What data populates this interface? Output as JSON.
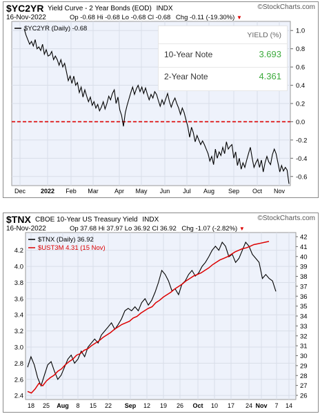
{
  "brand": "StockCharts.com",
  "chart1": {
    "symbol": "$YC2YR",
    "name": "Yield Curve - 2 Year Bonds (EOD)",
    "exchange": "INDX",
    "date": "16-Nov-2022",
    "ohlc": "Op -0.68  Hi -0.68  Lo -0.68  Cl -0.68",
    "chg": "Chg -0.11 (-19.30%)",
    "chg_arrow": "▼",
    "legend": "$YC2YR (Daily) -0.68",
    "yield_table": {
      "header": "YIELD (%)",
      "rows": [
        {
          "label": "10-Year Note",
          "value": "3.693"
        },
        {
          "label": "2-Year Note",
          "value": "4.361"
        }
      ],
      "value_color": "#3caa3c"
    }
  },
  "chart2": {
    "symbol": "$TNX",
    "name": "CBOE 10-Year US Treasury Yield",
    "exchange": "INDX",
    "date": "16-Nov-2022",
    "ohlc": "Op 37.68  Hi 37.97  Lo 36.92  Cl 36.92",
    "chg": "Chg -1.07 (-2.82%)",
    "chg_arrow": "▼",
    "legend1": "$TNX (Daily) 36.92",
    "legend2": "$UST3M 4.31 (15 Nov)"
  },
  "colors": {
    "line": "#000000",
    "red": "#dd0000",
    "grid": "#d8dde8",
    "plot_bg": "#eef2fb"
  },
  "chart_data": [
    {
      "type": "line",
      "title": "$YC2YR Yield Curve - 2 Year Bonds (EOD)",
      "ylim": [
        -0.7,
        1.1
      ],
      "y_ticks": [
        1.0,
        0.8,
        0.6,
        0.4,
        0.2,
        0.0,
        -0.2,
        -0.4,
        -0.6
      ],
      "x_labels": [
        "Dec",
        "2022",
        "Feb",
        "Mar",
        "Apr",
        "May",
        "Jun",
        "Jul",
        "Aug",
        "Sep",
        "Oct",
        "Nov"
      ],
      "reference_line": 0.0,
      "series": [
        {
          "name": "$YC2YR (Daily) -0.68",
          "color": "#000000",
          "values": [
            1.02,
            0.95,
            0.9,
            0.85,
            0.88,
            0.83,
            0.9,
            0.8,
            0.82,
            0.78,
            0.85,
            0.74,
            0.79,
            0.72,
            0.73,
            0.77,
            0.68,
            0.72,
            0.68,
            0.62,
            0.68,
            0.6,
            0.64,
            0.55,
            0.45,
            0.5,
            0.42,
            0.5,
            0.4,
            0.43,
            0.32,
            0.38,
            0.27,
            0.35,
            0.28,
            0.22,
            0.27,
            0.18,
            0.22,
            0.15,
            0.19,
            0.12,
            0.16,
            0.22,
            0.14,
            0.2,
            0.28,
            0.24,
            0.31,
            0.35,
            0.2,
            0.27,
            0.13,
            0.07,
            -0.05,
            0.1,
            0.18,
            0.25,
            0.32,
            0.38,
            0.3,
            0.36,
            0.4,
            0.33,
            0.38,
            0.31,
            0.37,
            0.3,
            0.24,
            0.3,
            0.26,
            0.33,
            0.3,
            0.23,
            0.17,
            0.24,
            0.19,
            0.25,
            0.31,
            0.22,
            0.16,
            0.22,
            0.26,
            0.2,
            0.15,
            0.08,
            0.15,
            0.1,
            0.02,
            -0.05,
            -0.17,
            -0.06,
            -0.12,
            -0.22,
            -0.15,
            -0.2,
            -0.25,
            -0.21,
            -0.25,
            -0.3,
            -0.35,
            -0.43,
            -0.38,
            -0.47,
            -0.3,
            -0.4,
            -0.33,
            -0.37,
            -0.28,
            -0.35,
            -0.22,
            -0.3,
            -0.27,
            -0.25,
            -0.4,
            -0.33,
            -0.48,
            -0.4,
            -0.52,
            -0.45,
            -0.5,
            -0.42,
            -0.35,
            -0.28,
            -0.4,
            -0.5,
            -0.45,
            -0.41,
            -0.5,
            -0.42,
            -0.55,
            -0.45,
            -0.38,
            -0.44,
            -0.47,
            -0.36,
            -0.3,
            -0.35,
            -0.45,
            -0.55,
            -0.48,
            -0.54,
            -0.5,
            -0.53,
            -0.68
          ]
        }
      ]
    },
    {
      "type": "line",
      "title": "$TNX CBOE 10-Year US Treasury Yield",
      "ylim": [
        2.35,
        4.42
      ],
      "y_ticks_left": [
        2.4,
        2.6,
        2.8,
        3.0,
        3.2,
        3.4,
        3.6,
        3.8,
        4.0,
        4.2
      ],
      "y_ticks_right": [
        26,
        27,
        28,
        29,
        30,
        31,
        32,
        33,
        34,
        35,
        36,
        37,
        38,
        39,
        40,
        41,
        42
      ],
      "x_labels": [
        "18",
        "25",
        "Aug",
        "8",
        "15",
        "22",
        "Sep",
        "12",
        "19",
        "26",
        "Oct",
        "10",
        "17",
        "24",
        "Nov",
        "7",
        "14"
      ],
      "series": [
        {
          "name": "$TNX (Daily) 36.92",
          "color": "#000000",
          "values": [
            2.75,
            2.88,
            2.78,
            2.62,
            2.52,
            2.65,
            2.78,
            2.82,
            2.7,
            2.6,
            2.65,
            2.75,
            2.85,
            2.9,
            2.8,
            2.85,
            2.95,
            2.88,
            3.0,
            3.05,
            3.1,
            3.05,
            3.15,
            3.2,
            3.25,
            3.3,
            3.22,
            3.28,
            3.35,
            3.45,
            3.48,
            3.45,
            3.5,
            3.45,
            3.55,
            3.6,
            3.52,
            3.58,
            3.68,
            3.8,
            3.95,
            3.9,
            3.82,
            3.7,
            3.72,
            3.65,
            3.78,
            3.82,
            3.9,
            3.95,
            3.88,
            3.92,
            4.0,
            4.05,
            4.12,
            4.2,
            4.25,
            4.2,
            4.3,
            4.25,
            4.12,
            4.15,
            4.05,
            4.1,
            4.2,
            4.3,
            4.25,
            4.15,
            4.1,
            4.05,
            3.85,
            3.9,
            3.85,
            3.82,
            3.69
          ]
        },
        {
          "name": "$UST3M 4.31 (15 Nov)",
          "color": "#dd0000",
          "values": [
            2.45,
            2.43,
            2.48,
            2.55,
            2.52,
            2.58,
            2.62,
            2.65,
            2.7,
            2.73,
            2.78,
            2.82,
            2.85,
            2.9,
            2.92,
            2.96,
            2.98,
            3.02,
            3.05,
            3.08,
            3.12,
            3.15,
            3.18,
            3.22,
            3.25,
            3.28,
            3.3,
            3.32,
            3.36,
            3.38,
            3.42,
            3.45,
            3.48,
            3.5,
            3.55,
            3.58,
            3.62,
            3.65,
            3.68,
            3.72,
            3.75,
            3.78,
            3.82,
            3.85,
            3.88,
            3.9,
            3.92,
            3.95,
            3.98,
            4.02,
            4.05,
            4.08,
            4.1,
            4.12,
            4.15,
            4.18,
            4.2,
            4.22,
            4.23,
            4.25,
            4.27,
            4.28,
            4.29,
            4.3,
            4.31
          ]
        }
      ]
    }
  ]
}
